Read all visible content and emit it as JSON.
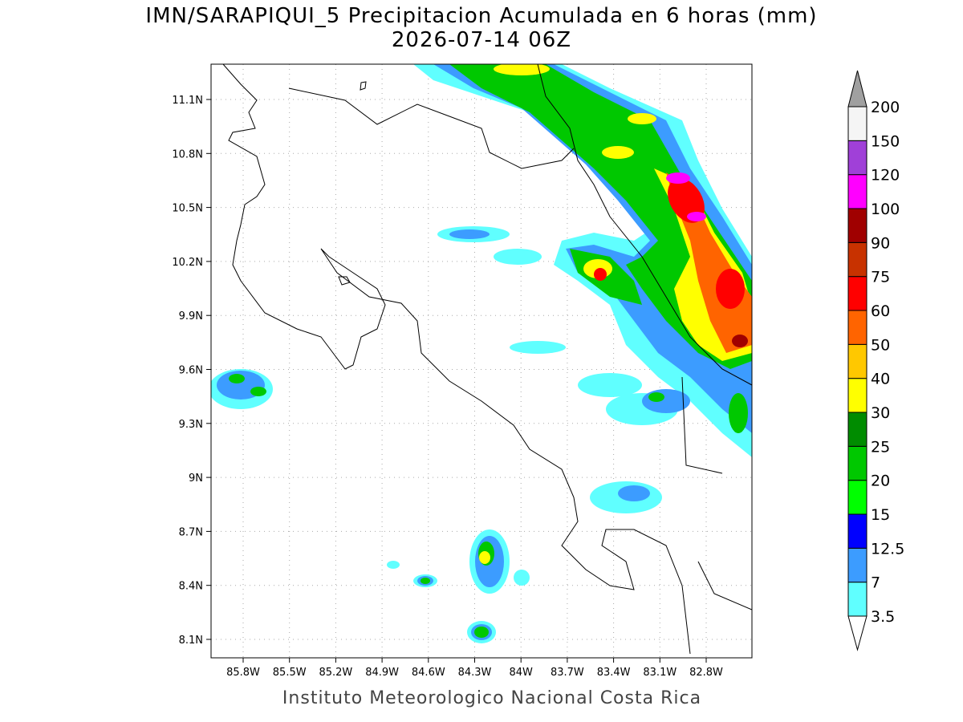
{
  "title": "IMN/SARAPIQUI_5 Precipitacion Acumulada en 6 horas (mm)",
  "subtitle": "2026-07-14 06Z",
  "map": {
    "lon_labels": [
      "85.8W",
      "85.5W",
      "85.2W",
      "84.9W",
      "84.6W",
      "84.3W",
      "84W",
      "83.7W",
      "83.4W",
      "83.1W",
      "82.8W"
    ],
    "lat_labels": [
      "11.1N",
      "10.8N",
      "10.5N",
      "10.2N",
      "9.9N",
      "9.6N",
      "9.3N",
      "9N",
      "8.7N",
      "8.4N",
      "8.1N"
    ]
  },
  "colorbar": {
    "levels": [
      3.5,
      7,
      12.5,
      15,
      20,
      25,
      30,
      40,
      50,
      60,
      75,
      90,
      100,
      120,
      150,
      200
    ],
    "colors": [
      "#60ffff",
      "#3c9cff",
      "#0000ff",
      "#00ff00",
      "#00c800",
      "#008c00",
      "#ffff00",
      "#ffc800",
      "#ff6400",
      "#ff0000",
      "#c83200",
      "#a00000",
      "#ff00ff",
      "#a040d8",
      "#f5f5f5"
    ],
    "under_color": "#ffffff",
    "over_color": "#a0a0a0"
  },
  "footer": "Instituto Meteorologico Nacional Costa Rica"
}
